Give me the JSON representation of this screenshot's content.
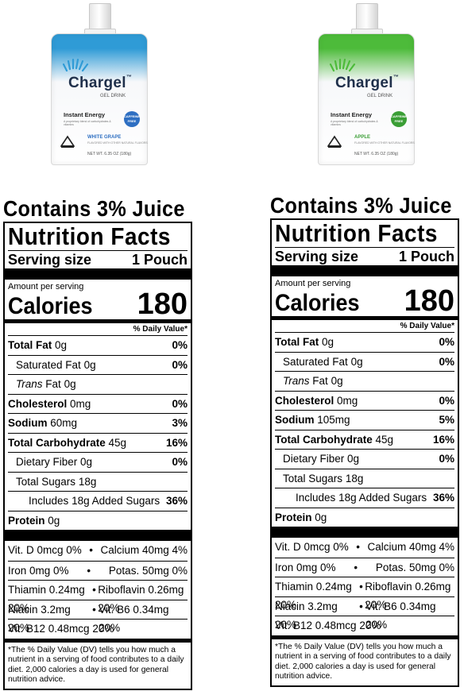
{
  "colors": {
    "grape_accent": "#2f9bd6",
    "grape_badge": "#2e6fc2",
    "apple_accent": "#4dbb3a",
    "apple_badge": "#3a9e35"
  },
  "products": [
    {
      "brand": "Chargel",
      "trademark": "™",
      "subtitle": "GEL DRINK",
      "tagline": "Instant Energy",
      "tagline_desc": "A proprietary blend of carbohydrates & vitamins",
      "badge": "CAFFEINE FREE",
      "maker": "MORINAGA",
      "flavor": "WHITE GRAPE",
      "flavor_desc": "FLAVORED WITH OTHER NATURAL FLAVORS",
      "net_wt": "NET WT. 6.35 OZ (180g)",
      "icon": "pouch-image"
    },
    {
      "brand": "Chargel",
      "trademark": "™",
      "subtitle": "GEL DRINK",
      "tagline": "Instant Energy",
      "tagline_desc": "A proprietary blend of carbohydrates & vitamins",
      "badge": "CAFFEINE FREE",
      "maker": "MORINAGA",
      "flavor": "APPLE",
      "flavor_desc": "FLAVORED WITH OTHER NATURAL FLAVORS",
      "net_wt": "NET WT. 6.35 OZ (180g)",
      "icon": "pouch-image"
    }
  ],
  "labels": [
    {
      "juice": "Contains 3% Juice",
      "title": "Nutrition Facts",
      "serving_label": "Serving size",
      "serving_value": "1 Pouch",
      "amount_per": "Amount per serving",
      "calories_label": "Calories",
      "calories_value": "180",
      "dv_head": "% Daily Value*",
      "rows": [
        {
          "name": "Total Fat",
          "amt": "0g",
          "pct": "0%"
        },
        {
          "name": "Saturated Fat",
          "amt": "0g",
          "pct": "0%"
        },
        {
          "name": "Trans",
          "name2": "Fat",
          "amt": "0g",
          "pct": ""
        },
        {
          "name": "Cholesterol",
          "amt": "0mg",
          "pct": "0%"
        },
        {
          "name": "Sodium",
          "amt": "60mg",
          "pct": "3%"
        },
        {
          "name": "Total Carbohydrate",
          "amt": "45g",
          "pct": "16%"
        },
        {
          "name": "Dietary Fiber",
          "amt": "0g",
          "pct": "0%"
        },
        {
          "name": "Total Sugars",
          "amt": "18g",
          "pct": ""
        },
        {
          "name": "Includes",
          "amt": "18g Added Sugars",
          "pct": "36%"
        },
        {
          "name": "Protein",
          "amt": "0g",
          "pct": ""
        }
      ],
      "vitamins": [
        [
          "Vit. D 0mcg 0%",
          "•",
          "Calcium 40mg 4%"
        ],
        [
          "Iron 0mg 0%",
          "•",
          "Potas. 50mg 0%"
        ],
        [
          "Thiamin 0.24mg 20%",
          "•",
          "Riboflavin 0.26mg 20%"
        ],
        [
          "Niacin 3.2mg 20%",
          "•",
          "Vit. B6 0.34mg 20%"
        ],
        [
          "Vit. B12 0.48mcg 20%",
          "",
          ""
        ]
      ],
      "footnote": "*The % Daily Value (DV) tells you how much a nutrient in a serving of food contributes to a daily diet. 2,000 calories a day is used for general nutrition advice."
    },
    {
      "juice": "Contains 3% Juice",
      "title": "Nutrition Facts",
      "serving_label": "Serving size",
      "serving_value": "1 Pouch",
      "amount_per": "Amount per serving",
      "calories_label": "Calories",
      "calories_value": "180",
      "dv_head": "% Daily Value*",
      "rows": [
        {
          "name": "Total Fat",
          "amt": "0g",
          "pct": "0%"
        },
        {
          "name": "Saturated Fat",
          "amt": "0g",
          "pct": "0%"
        },
        {
          "name": "Trans",
          "name2": "Fat",
          "amt": "0g",
          "pct": ""
        },
        {
          "name": "Cholesterol",
          "amt": "0mg",
          "pct": "0%"
        },
        {
          "name": "Sodium",
          "amt": "105mg",
          "pct": "5%"
        },
        {
          "name": "Total Carbohydrate",
          "amt": "45g",
          "pct": "16%"
        },
        {
          "name": "Dietary Fiber",
          "amt": "0g",
          "pct": "0%"
        },
        {
          "name": "Total Sugars",
          "amt": "18g",
          "pct": ""
        },
        {
          "name": "Includes",
          "amt": "18g Added Sugars",
          "pct": "36%"
        },
        {
          "name": "Protein",
          "amt": "0g",
          "pct": ""
        }
      ],
      "vitamins": [
        [
          "Vit. D 0mcg 0%",
          "•",
          "Calcium 40mg 4%"
        ],
        [
          "Iron 0mg 0%",
          "•",
          "Potas. 50mg 0%"
        ],
        [
          "Thiamin 0.24mg 20%",
          "•",
          "Riboflavin 0.26mg 20%"
        ],
        [
          "Niacin 3.2mg 20%",
          "•",
          "Vit. B6 0.34mg 20%"
        ],
        [
          "Vit. B12 0.48mcg 20%",
          "",
          ""
        ]
      ],
      "footnote": "*The % Daily Value (DV) tells you how much a nutrient in a serving of food contributes to a daily diet. 2,000 calories a day is used for general nutrition advice."
    }
  ]
}
